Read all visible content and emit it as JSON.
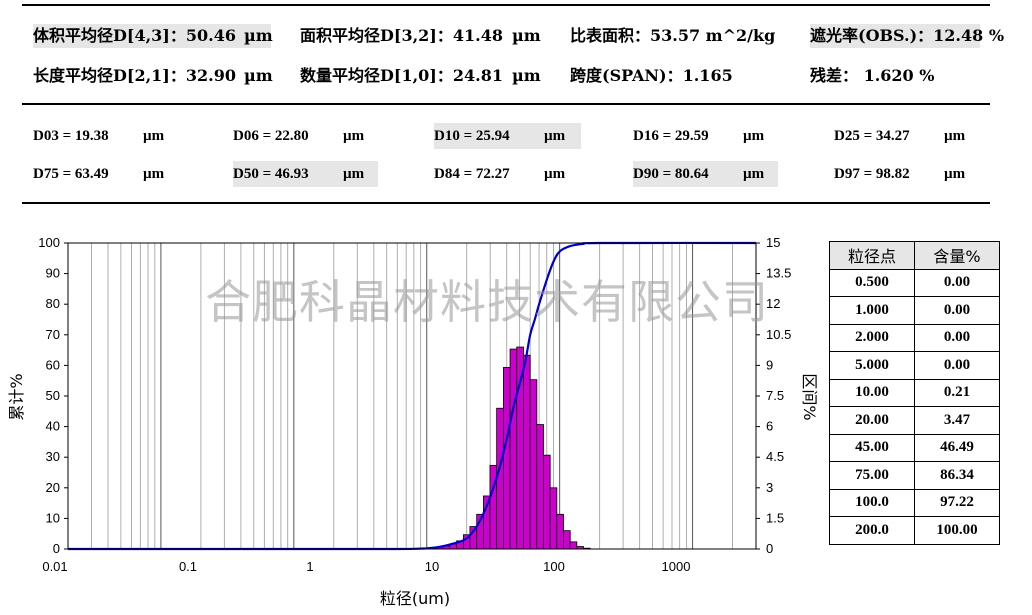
{
  "stats_row1": [
    {
      "label": "体积平均径D[4,3]：50.46",
      "unit": "µm",
      "hl": true
    },
    {
      "label": "面积平均径D[3,2]：41.48",
      "unit": "µm",
      "hl": false
    },
    {
      "label": "比表面积：53.57 m^2/kg",
      "unit": "",
      "hl": false
    },
    {
      "label": "遮光率(OBS.)：12.48 %",
      "unit": "",
      "hl": true
    }
  ],
  "stats_row2": [
    {
      "label": "长度平均径D[2,1]：32.90",
      "unit": "µm"
    },
    {
      "label": "数量平均径D[1,0]：24.81",
      "unit": "µm"
    },
    {
      "label": "跨度(SPAN)：1.165",
      "unit": ""
    },
    {
      "label": "残差： 1.620 %",
      "unit": ""
    }
  ],
  "d_values": [
    {
      "label": "D03 = 19.38",
      "unit": "µm",
      "hl": false
    },
    {
      "label": "D06 = 22.80",
      "unit": "µm",
      "hl": false
    },
    {
      "label": "D10 = 25.94",
      "unit": "µm",
      "hl": true
    },
    {
      "label": "D16 = 29.59",
      "unit": "µm",
      "hl": false
    },
    {
      "label": "D25 = 34.27",
      "unit": "µm",
      "hl": false
    },
    {
      "label": "D75 = 63.49",
      "unit": "µm",
      "hl": false
    },
    {
      "label": "D50 = 46.93",
      "unit": "µm",
      "hl": true
    },
    {
      "label": "D84 = 72.27",
      "unit": "µm",
      "hl": false
    },
    {
      "label": "D90 = 80.64",
      "unit": "µm",
      "hl": true
    },
    {
      "label": "D97 = 98.82",
      "unit": "µm",
      "hl": false
    }
  ],
  "watermark": "合肥科晶材料技术有限公司",
  "table": {
    "headers": [
      "粒径点",
      "含量%"
    ],
    "rows": [
      [
        "0.500",
        "0.00"
      ],
      [
        "1.000",
        "0.00"
      ],
      [
        "2.000",
        "0.00"
      ],
      [
        "5.000",
        "0.00"
      ],
      [
        "10.00",
        "0.21"
      ],
      [
        "20.00",
        "3.47"
      ],
      [
        "45.00",
        "46.49"
      ],
      [
        "75.00",
        "86.34"
      ],
      [
        "100.0",
        "97.22"
      ],
      [
        "200.0",
        "100.00"
      ]
    ]
  },
  "chart_data": {
    "type": "bar",
    "xlabel": "粒径(um)",
    "ylabel_left": "累计%",
    "ylabel_right": "区间%",
    "xscale": "log",
    "xlim": [
      0.02,
      3000
    ],
    "xticks": [
      "0.01",
      "0.1",
      "1",
      "10",
      "100",
      "1000"
    ],
    "ylim_left": [
      0,
      100
    ],
    "ylim_right": [
      0,
      15
    ],
    "left_ticks": [
      "0",
      "10",
      "20",
      "30",
      "40",
      "50",
      "60",
      "70",
      "80",
      "90",
      "100"
    ],
    "right_ticks": [
      "0",
      "1.5",
      "3",
      "4.5",
      "6",
      "7.5",
      "9",
      "10.5",
      "12",
      "13.5",
      "15"
    ],
    "grid": true,
    "bar_color": "#cc00cc",
    "curve_color": "#0000cc",
    "histogram": {
      "name": "区间%",
      "x": [
        8.83,
        9.93,
        11.2,
        12.6,
        14.1,
        15.8,
        17.8,
        20.0,
        22.4,
        25.2,
        28.3,
        31.7,
        35.6,
        40.0,
        44.9,
        50.4,
        56.6,
        63.5,
        71.3,
        80.0,
        89.8,
        100.8,
        113.2,
        127.0,
        142.6,
        160.1
      ],
      "values": [
        0.02,
        0.03,
        0.05,
        0.1,
        0.15,
        0.25,
        0.4,
        0.7,
        1.1,
        1.7,
        2.6,
        4.1,
        6.9,
        8.9,
        9.8,
        9.9,
        9.5,
        8.3,
        6.1,
        4.6,
        3.0,
        1.7,
        0.9,
        0.35,
        0.12,
        0.04
      ]
    },
    "cumulative": {
      "name": "累计%",
      "x": [
        0.02,
        1,
        5,
        8,
        10,
        12,
        15,
        20,
        25,
        30,
        35,
        40,
        45,
        50,
        55,
        60,
        65,
        70,
        80,
        90,
        100,
        120,
        150,
        200,
        3000
      ],
      "values": [
        0,
        0,
        0,
        0.05,
        0.21,
        0.6,
        1.5,
        3.47,
        9,
        17,
        26,
        36,
        46.49,
        54,
        61,
        70,
        75,
        80,
        88,
        94,
        97.22,
        99,
        99.7,
        100,
        100
      ]
    }
  }
}
